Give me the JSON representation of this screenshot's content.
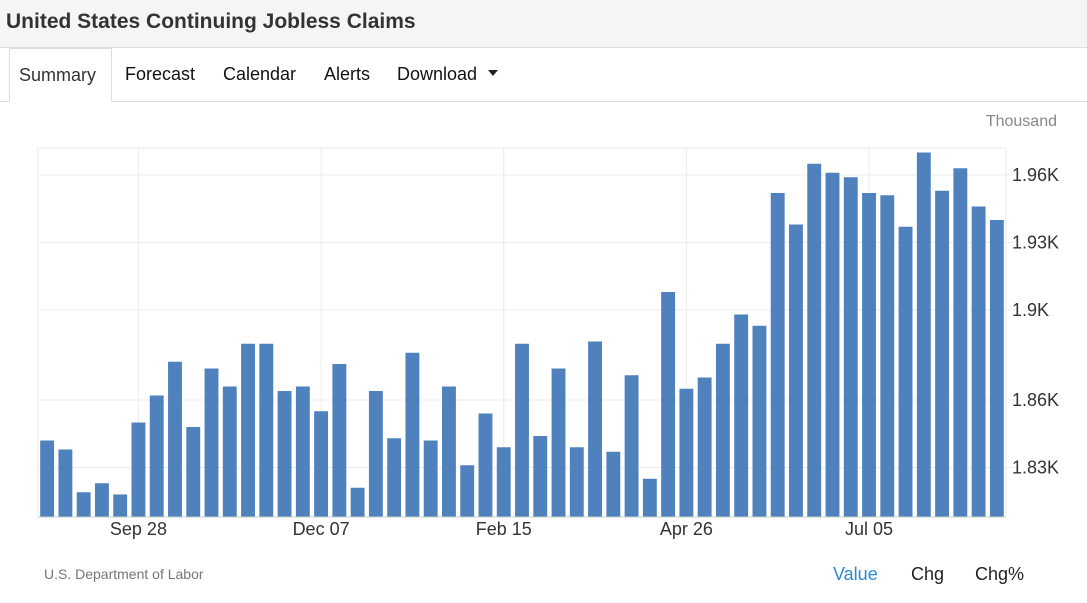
{
  "page": {
    "title": "United States Continuing Jobless Claims"
  },
  "tabs": [
    {
      "label": "Summary"
    },
    {
      "label": "Forecast"
    },
    {
      "label": "Calendar"
    },
    {
      "label": "Alerts"
    },
    {
      "label": "Download"
    }
  ],
  "chart_data": {
    "type": "bar",
    "unit": "Thousand",
    "color": "#4f81bd",
    "x_tick_labels": [
      "Sep 28",
      "Dec 07",
      "Feb 15",
      "Apr 26",
      "Jul 05"
    ],
    "y_ticks": [
      1830,
      1860,
      1900,
      1930,
      1960
    ],
    "y_tick_labels": [
      "1.83K",
      "1.86K",
      "1.9K",
      "1.93K",
      "1.96K"
    ],
    "ylim": [
      1808,
      1972
    ],
    "grid": true,
    "values": [
      1842,
      1838,
      1819,
      1823,
      1818,
      1850,
      1862,
      1877,
      1848,
      1874,
      1866,
      1885,
      1885,
      1864,
      1866,
      1855,
      1876,
      1821,
      1864,
      1843,
      1881,
      1842,
      1866,
      1831,
      1854,
      1839,
      1885,
      1844,
      1874,
      1839,
      1886,
      1837,
      1871,
      1825,
      1908,
      1865,
      1870,
      1885,
      1898,
      1893,
      1952,
      1938,
      1965,
      1961,
      1959,
      1952,
      1951,
      1937,
      1970,
      1953,
      1963,
      1946,
      1940
    ]
  },
  "footer": {
    "source": "U.S. Department of Labor",
    "tabs": [
      {
        "label": "Value",
        "color": "#2a8ad4"
      },
      {
        "label": "Chg",
        "color": "#222222"
      },
      {
        "label": "Chg%",
        "color": "#222222"
      }
    ]
  }
}
